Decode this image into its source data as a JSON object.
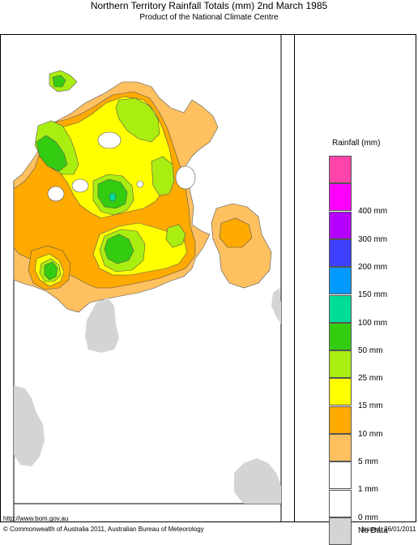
{
  "header": {
    "title": "Northern Territory Rainfall Totals (mm) 2nd March 1985",
    "subtitle": "Product of the National Climate Centre"
  },
  "legend": {
    "title": "Rainfall (mm)",
    "items": [
      {
        "label": "",
        "color": "#ff44aa"
      },
      {
        "label": "400 mm",
        "color": "#ff00ff"
      },
      {
        "label": "300 mm",
        "color": "#b300ff"
      },
      {
        "label": "200 mm",
        "color": "#3f3fff"
      },
      {
        "label": "150 mm",
        "color": "#0099ff"
      },
      {
        "label": "100 mm",
        "color": "#00dd99"
      },
      {
        "label": "50 mm",
        "color": "#33cc11"
      },
      {
        "label": "25 mm",
        "color": "#aaee11"
      },
      {
        "label": "15 mm",
        "color": "#ffff00"
      },
      {
        "label": "10 mm",
        "color": "#ffaa00"
      },
      {
        "label": "5 mm",
        "color": "#ffc060"
      },
      {
        "label": "1 mm",
        "color": "#ffffff"
      },
      {
        "label": "0 mm",
        "color": "#d4d4d4"
      },
      {
        "label": "No Data",
        "color": ""
      }
    ]
  },
  "footer": {
    "url": "http://www.bom.gov.au",
    "copyright": "© Commonwealth of Australia 2011, Australian Bureau of Meteorology",
    "issued": "Issued: 26/01/2011"
  }
}
